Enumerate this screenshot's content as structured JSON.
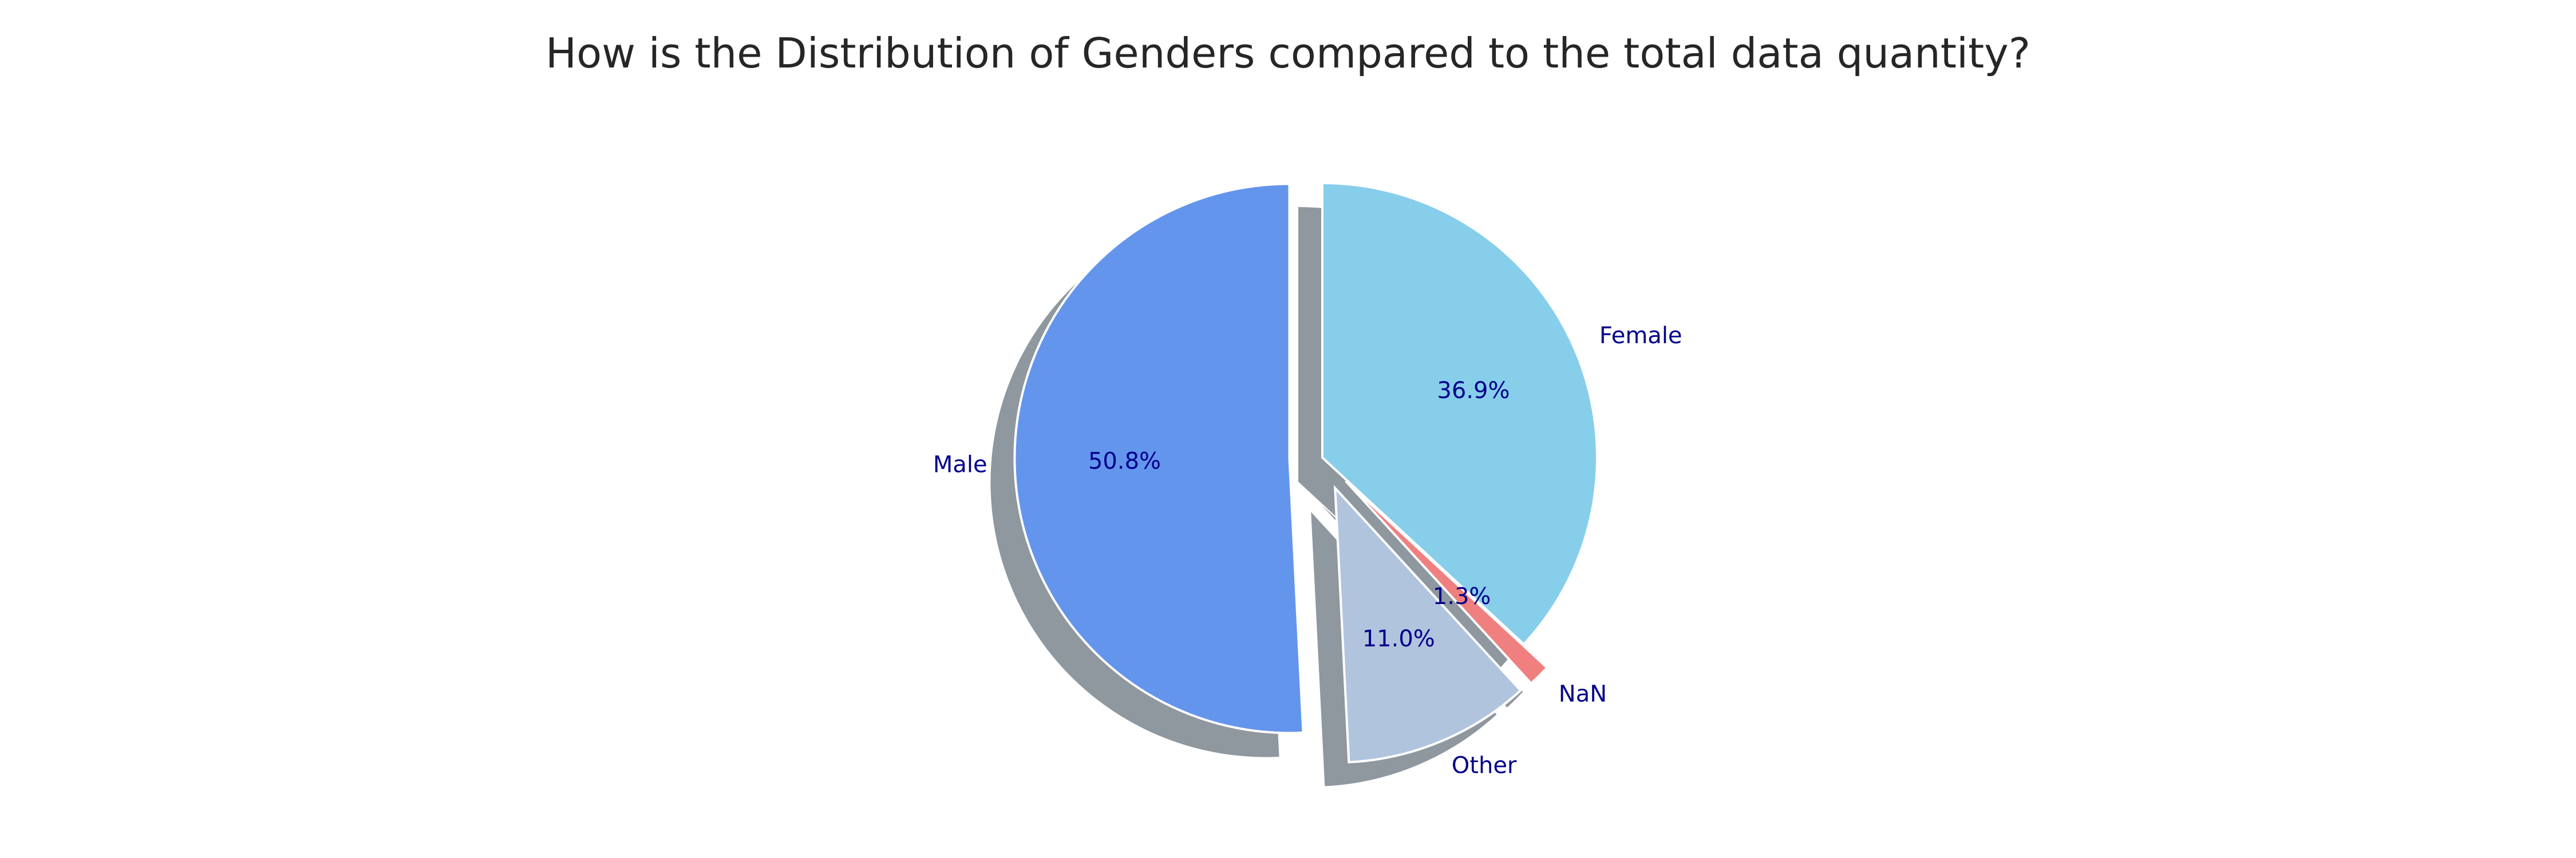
{
  "chart_data": {
    "type": "pie",
    "title": "How is the Distribution of Genders compared to the total data quantity?",
    "slices": [
      {
        "label": "Male",
        "value": 50.8,
        "pct_label": "50.8%",
        "color": "#6495ED",
        "exploded": true
      },
      {
        "label": "Other",
        "value": 11.0,
        "pct_label": "11.0%",
        "color": "#B0C4DE",
        "exploded": true
      },
      {
        "label": "NaN",
        "value": 1.3,
        "pct_label": "1.3%",
        "color": "#F08080",
        "exploded": true
      },
      {
        "label": "Female",
        "value": 36.9,
        "pct_label": "36.9%",
        "color": "#87CEEB",
        "exploded": false
      }
    ],
    "start_angle_deg": 90,
    "direction": "counterclockwise",
    "shadow": true,
    "label_color": "#00008B",
    "legend": "none"
  }
}
